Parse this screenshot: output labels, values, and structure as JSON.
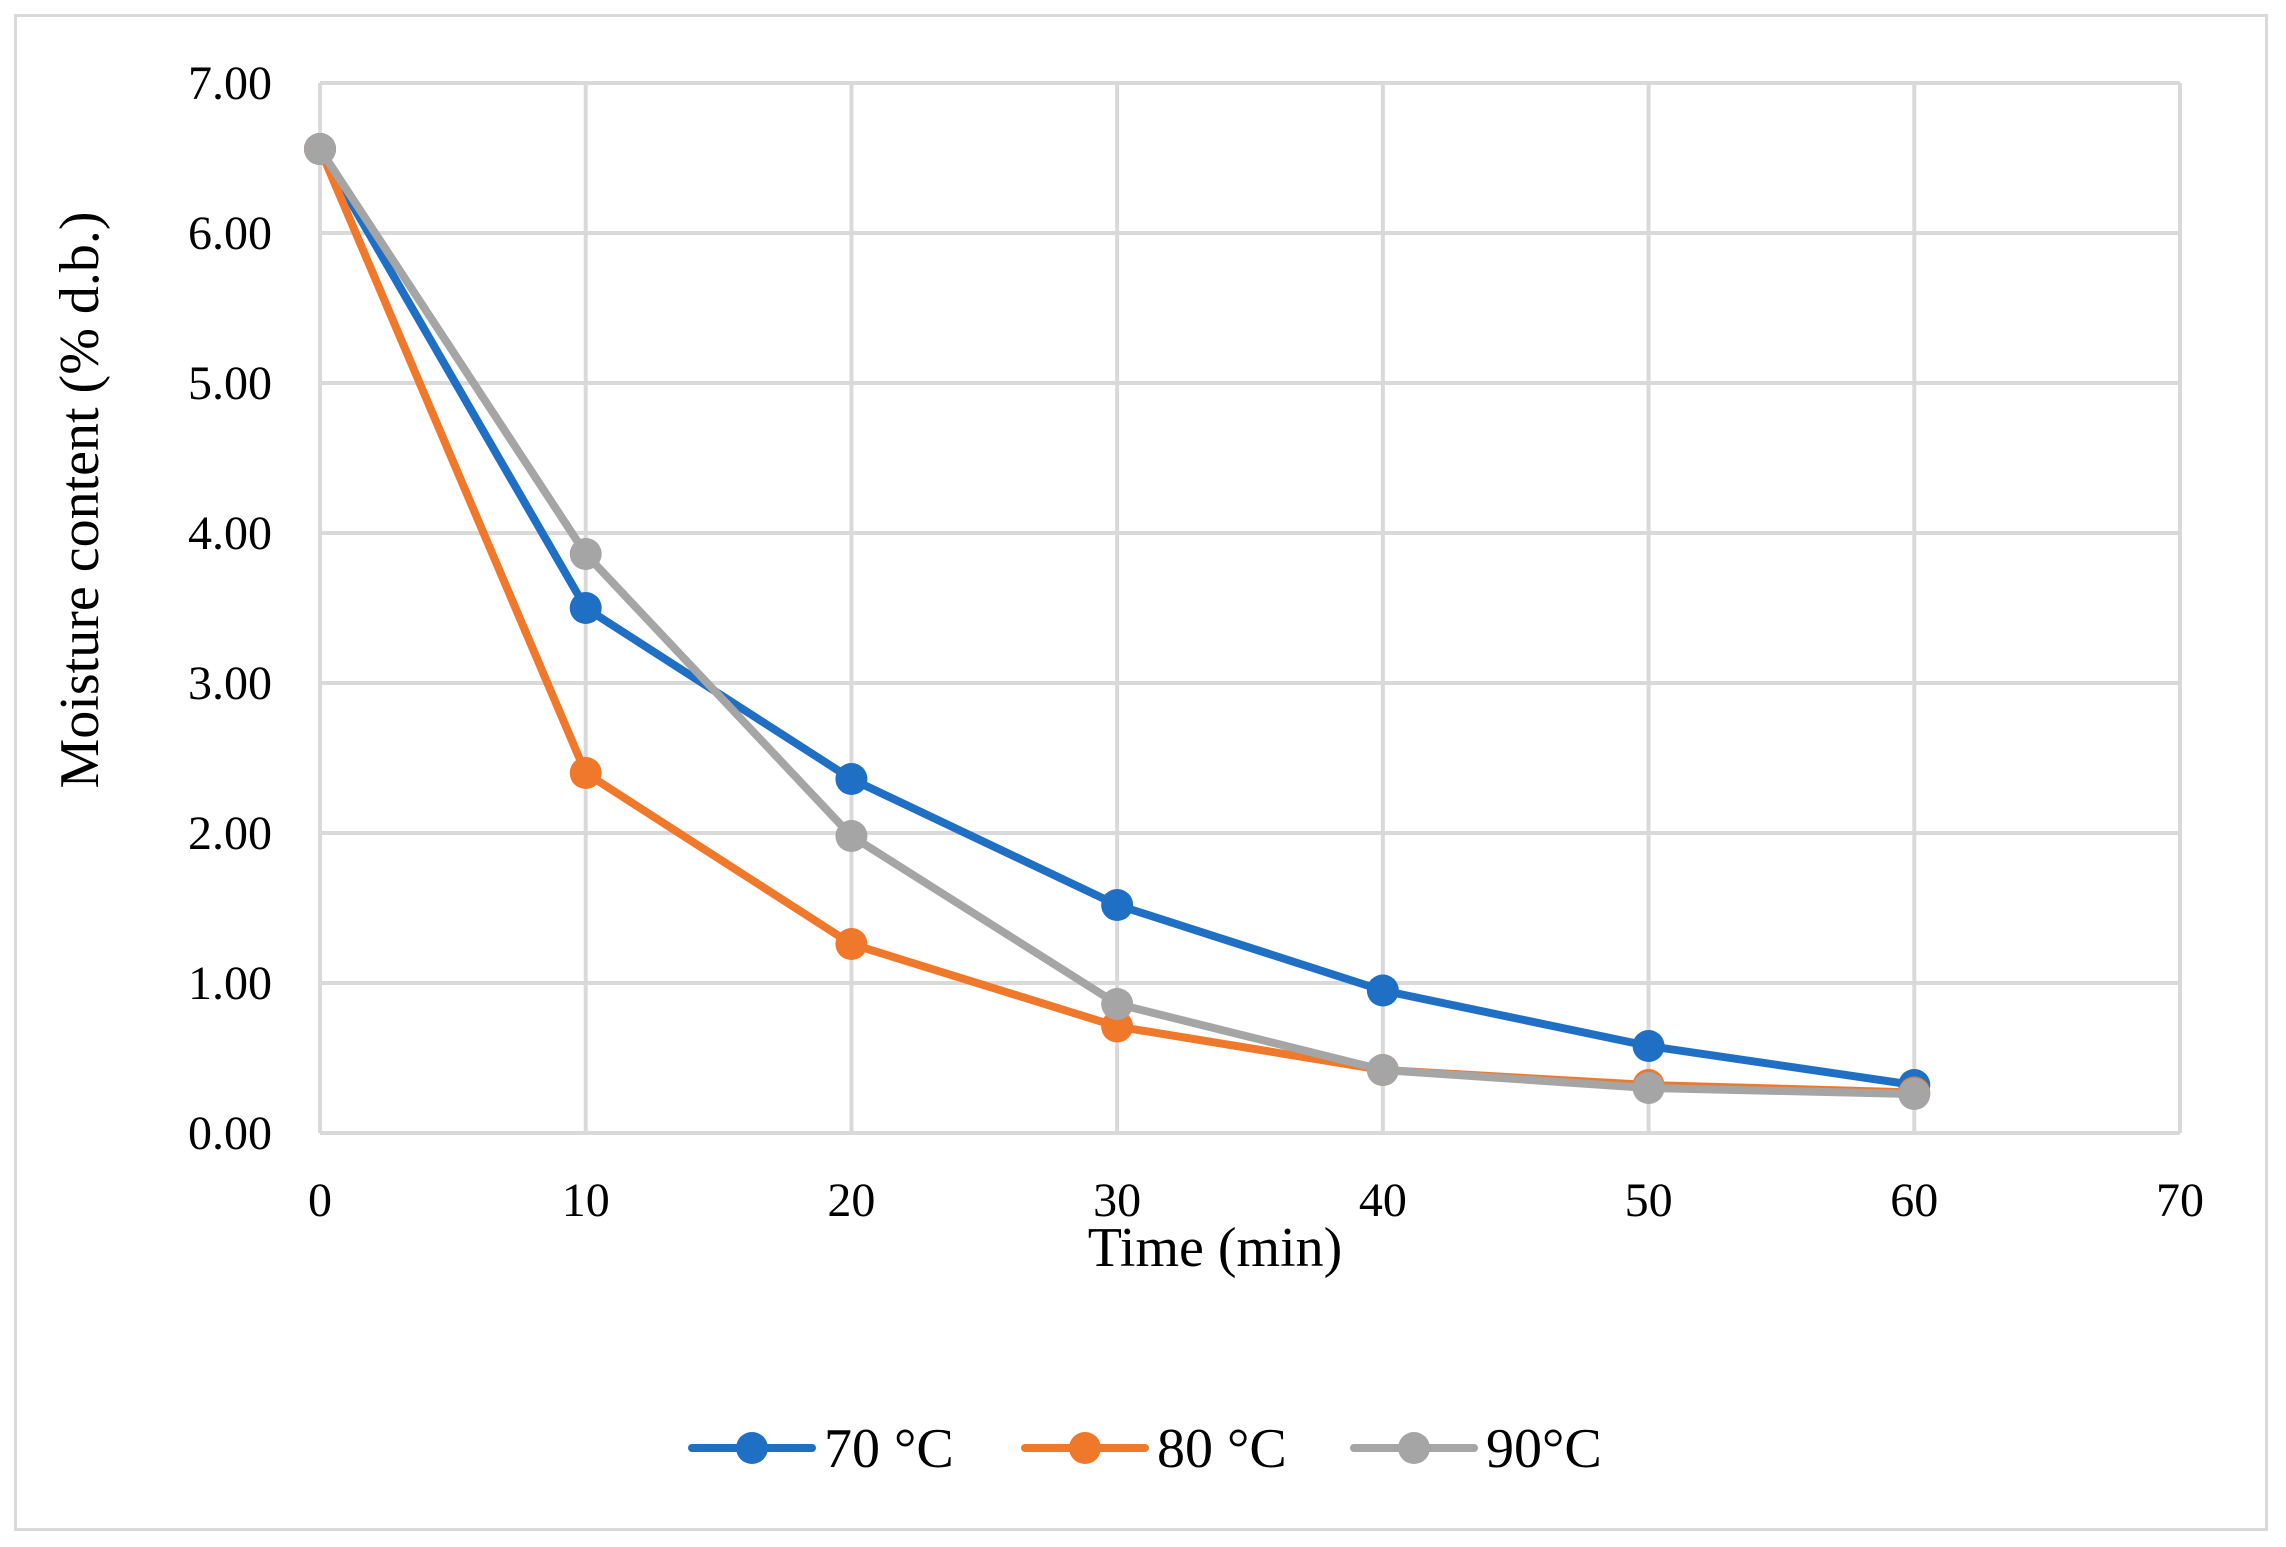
{
  "chart_data": {
    "type": "line",
    "title": "",
    "xlabel": "Time (min)",
    "ylabel": "Moisture content (% d.b.)",
    "xlim": [
      0,
      70
    ],
    "ylim": [
      0,
      7
    ],
    "x_ticks": [
      "0",
      "10",
      "20",
      "30",
      "40",
      "50",
      "60",
      "70"
    ],
    "y_ticks": [
      "0.00",
      "1.00",
      "2.00",
      "3.00",
      "4.00",
      "5.00",
      "6.00",
      "7.00"
    ],
    "grid": true,
    "legend_position": "bottom",
    "x": [
      0,
      10,
      20,
      30,
      40,
      50,
      60
    ],
    "series": [
      {
        "name": "70 °C",
        "color": "#1f6fc5",
        "values": [
          6.56,
          3.5,
          2.36,
          1.52,
          0.95,
          0.58,
          0.32
        ]
      },
      {
        "name": "80 °C",
        "color": "#f0782a",
        "values": [
          6.56,
          2.4,
          1.26,
          0.71,
          0.42,
          0.32,
          0.27
        ]
      },
      {
        "name": "90°C",
        "color": "#a5a5a5",
        "values": [
          6.56,
          3.86,
          1.98,
          0.86,
          0.42,
          0.3,
          0.26
        ]
      }
    ]
  }
}
